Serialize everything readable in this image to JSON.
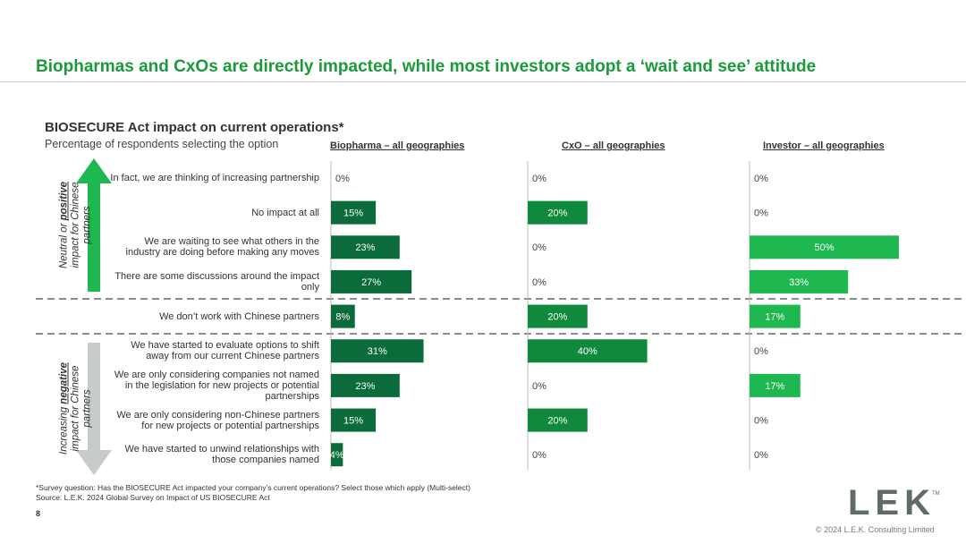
{
  "header": {
    "title": "Biopharmas and CxOs are directly impacted, while most investors adopt a ‘wait and see’ attitude"
  },
  "chart_data": {
    "type": "bar",
    "orientation": "horizontal",
    "title": "BIOSECURE Act impact on current operations*",
    "subtitle": "Percentage of respondents selecting the option",
    "categories": [
      "In fact, we are thinking of increasing partnership",
      "No impact at all",
      "We are waiting to see what others in the industry are doing before making any moves",
      "There are some discussions around the impact only",
      "We don’t work with Chinese partners",
      "We have started to evaluate options to shift away from our current Chinese partners",
      "We are only considering companies not named in the legislation for new projects or potential partnerships",
      "We are only considering non-Chinese partners for new projects or potential partnerships",
      "We have started to unwind relationships with those companies named"
    ],
    "series": [
      {
        "name": "Biopharma – all geographies",
        "color": "#0b6b3a",
        "values": [
          0,
          15,
          23,
          27,
          8,
          31,
          23,
          15,
          4
        ],
        "value_labels": [
          "0%",
          "15%",
          "23%",
          "27%",
          "8%",
          "31%",
          "23%",
          "15%",
          "4%"
        ]
      },
      {
        "name": "CxO – all geographies",
        "color": "#0f8a3c",
        "values": [
          0,
          20,
          0,
          0,
          20,
          40,
          0,
          20,
          0
        ],
        "value_labels": [
          "0%",
          "20%",
          "0%",
          "0%",
          "20%",
          "40%",
          "0%",
          "20%",
          "0%"
        ]
      },
      {
        "name": "Investor – all geographies",
        "color": "#1fb850",
        "values": [
          0,
          0,
          50,
          33,
          17,
          0,
          17,
          0,
          0
        ],
        "value_labels": [
          "0%",
          "0%",
          "50%",
          "33%",
          "17%",
          "0%",
          "17%",
          "0%",
          "0%"
        ]
      }
    ],
    "side_labels": [
      {
        "before": "Neutral or ",
        "emphasis": "positive",
        "after": " impact for Chinese partners"
      },
      {
        "before": "Increasing ",
        "emphasis": "negative",
        "after": " impact for Chinese partners"
      }
    ]
  },
  "footer": {
    "footnote": "*Survey question: Has the BIOSECURE Act impacted your company’s current operations? Select those which apply (Multi-select)",
    "source": "Source:  L.E.K. 2024 Global Survey on Impact of US BIOSECURE Act",
    "page": "8",
    "logo": "LEK",
    "trademark": "TM",
    "copyright": "© 2024 L.E.K. Consulting Limited"
  }
}
